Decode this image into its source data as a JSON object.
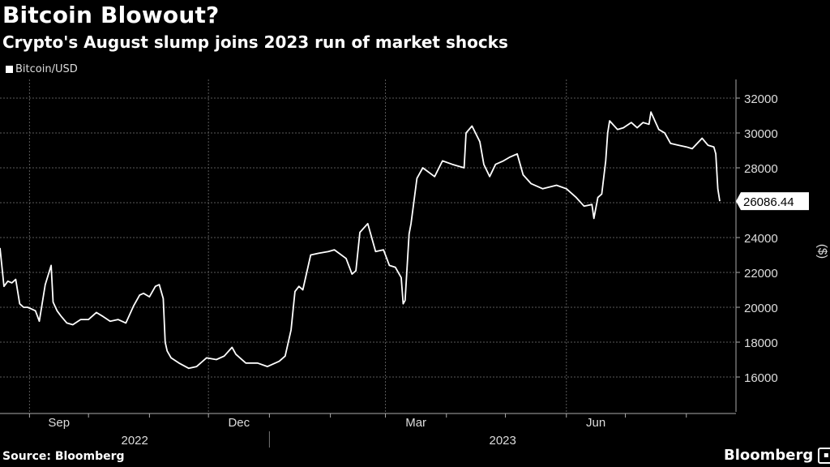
{
  "header": {
    "title": "Bitcoin Blowout?",
    "subtitle": "Crypto's August slump joins 2023 run of market shocks"
  },
  "legend": {
    "label": "Bitcoin/USD"
  },
  "footer": {
    "source": "Source: Bloomberg",
    "brand": "Bloomberg"
  },
  "colors": {
    "background": "#000000",
    "line": "#ffffff",
    "grid": "#555555",
    "text": "#ffffff"
  },
  "chart_data": {
    "type": "line",
    "series": [
      {
        "name": "Bitcoin/USD",
        "x": [
          "2022-08-17",
          "2022-08-19",
          "2022-08-21",
          "2022-08-23",
          "2022-08-25",
          "2022-08-27",
          "2022-08-29",
          "2022-08-31",
          "2022-09-02",
          "2022-09-04",
          "2022-09-06",
          "2022-09-09",
          "2022-09-12",
          "2022-09-13",
          "2022-09-15",
          "2022-09-17",
          "2022-09-20",
          "2022-09-23",
          "2022-09-27",
          "2022-10-01",
          "2022-10-05",
          "2022-10-08",
          "2022-10-12",
          "2022-10-16",
          "2022-10-20",
          "2022-10-24",
          "2022-10-27",
          "2022-10-29",
          "2022-11-01",
          "2022-11-04",
          "2022-11-06",
          "2022-11-08",
          "2022-11-09",
          "2022-11-10",
          "2022-11-12",
          "2022-11-16",
          "2022-11-21",
          "2022-11-25",
          "2022-11-30",
          "2022-12-05",
          "2022-12-09",
          "2022-12-13",
          "2022-12-15",
          "2022-12-20",
          "2022-12-26",
          "2022-12-31",
          "2023-01-06",
          "2023-01-09",
          "2023-01-12",
          "2023-01-14",
          "2023-01-16",
          "2023-01-18",
          "2023-01-22",
          "2023-01-26",
          "2023-01-31",
          "2023-02-03",
          "2023-02-09",
          "2023-02-12",
          "2023-02-14",
          "2023-02-16",
          "2023-02-20",
          "2023-02-24",
          "2023-02-28",
          "2023-03-03",
          "2023-03-06",
          "2023-03-09",
          "2023-03-10",
          "2023-03-11",
          "2023-03-13",
          "2023-03-14",
          "2023-03-17",
          "2023-03-20",
          "2023-03-26",
          "2023-03-30",
          "2023-04-04",
          "2023-04-10",
          "2023-04-11",
          "2023-04-14",
          "2023-04-18",
          "2023-04-20",
          "2023-04-23",
          "2023-04-26",
          "2023-04-30",
          "2023-05-03",
          "2023-05-07",
          "2023-05-10",
          "2023-05-14",
          "2023-05-20",
          "2023-05-27",
          "2023-06-01",
          "2023-06-06",
          "2023-06-10",
          "2023-06-14",
          "2023-06-15",
          "2023-06-17",
          "2023-06-19",
          "2023-06-21",
          "2023-06-22",
          "2023-06-23",
          "2023-06-27",
          "2023-06-30",
          "2023-07-04",
          "2023-07-07",
          "2023-07-10",
          "2023-07-13",
          "2023-07-14",
          "2023-07-18",
          "2023-07-21",
          "2023-07-24",
          "2023-07-28",
          "2023-08-01",
          "2023-08-04",
          "2023-08-09",
          "2023-08-12",
          "2023-08-15",
          "2023-08-16",
          "2023-08-17",
          "2023-08-18"
        ],
        "values": [
          23400,
          21200,
          21500,
          21400,
          21600,
          20200,
          20000,
          20000,
          19900,
          19800,
          19200,
          21300,
          22400,
          20300,
          19800,
          19500,
          19100,
          19000,
          19300,
          19300,
          19700,
          19500,
          19200,
          19300,
          19100,
          20100,
          20700,
          20800,
          20600,
          21200,
          21300,
          20500,
          18000,
          17500,
          17100,
          16800,
          16500,
          16600,
          17100,
          17000,
          17200,
          17700,
          17300,
          16800,
          16800,
          16600,
          16900,
          17200,
          18700,
          20900,
          21200,
          21000,
          23000,
          23100,
          23200,
          23300,
          22800,
          21900,
          22100,
          24300,
          24800,
          23200,
          23300,
          22400,
          22300,
          21700,
          20200,
          20400,
          24200,
          24800,
          27400,
          28000,
          27500,
          28400,
          28200,
          28000,
          30000,
          30400,
          29500,
          28200,
          27500,
          28200,
          28400,
          28600,
          28800,
          27600,
          27100,
          26800,
          27000,
          26800,
          26300,
          25800,
          25900,
          25100,
          26300,
          26500,
          28400,
          30000,
          30700,
          30200,
          30300,
          30600,
          30300,
          30600,
          30500,
          31200,
          30200,
          30000,
          29400,
          29300,
          29200,
          29100,
          29700,
          29300,
          29200,
          28800,
          26800,
          26086.44
        ]
      }
    ],
    "last_value_label": "26086.44",
    "y_ticks": [
      16000,
      18000,
      20000,
      22000,
      24000,
      26000,
      28000,
      30000,
      32000
    ],
    "y_unit_label": "($)",
    "ylim": [
      14500,
      33000
    ],
    "x_month_ticks": [
      {
        "label": "Sep",
        "date": "2022-09-01"
      },
      {
        "label": "Dec",
        "date": "2022-12-01"
      },
      {
        "label": "Mar",
        "date": "2023-03-01"
      },
      {
        "label": "Jun",
        "date": "2023-06-01"
      }
    ],
    "x_year_labels": [
      {
        "label": "2022"
      },
      {
        "label": "2023"
      }
    ],
    "grid": true,
    "y_axis_side": "right"
  }
}
